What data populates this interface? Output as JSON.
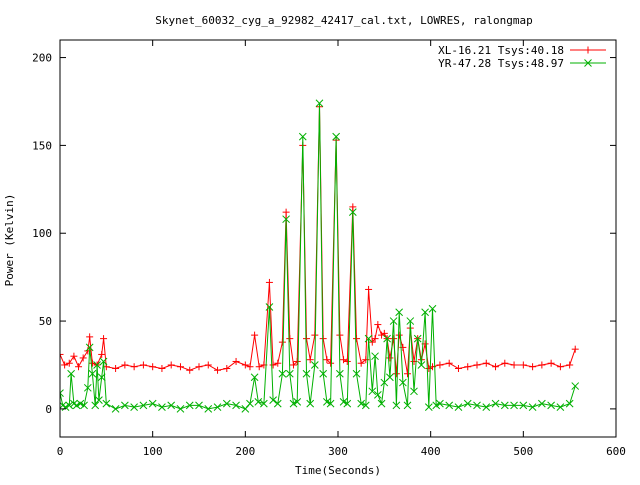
{
  "chart_data": {
    "type": "line",
    "title": "Skynet_60032_cyg_a_92982_42417_cal.txt, LOWRES, ralongmap",
    "xlabel": "Time(Seconds)",
    "ylabel": "Power (Kelvin)",
    "xlim": [
      0,
      600
    ],
    "ylim": [
      -16,
      210
    ],
    "xticks": [
      0,
      100,
      200,
      300,
      400,
      500,
      600
    ],
    "yticks": [
      0,
      50,
      100,
      150,
      200
    ],
    "grid": false,
    "legend_position": "top-right",
    "series": [
      {
        "name": "XL-16.21 Tsys:40.18",
        "color": "#ff0000",
        "marker": "plus",
        "points": [
          [
            0,
            31
          ],
          [
            5,
            25
          ],
          [
            10,
            26
          ],
          [
            15,
            30
          ],
          [
            20,
            24
          ],
          [
            25,
            29
          ],
          [
            30,
            33
          ],
          [
            32,
            41
          ],
          [
            35,
            26
          ],
          [
            40,
            25
          ],
          [
            45,
            31
          ],
          [
            47,
            40
          ],
          [
            50,
            24
          ],
          [
            60,
            23
          ],
          [
            70,
            25
          ],
          [
            80,
            24
          ],
          [
            90,
            25
          ],
          [
            100,
            24
          ],
          [
            110,
            23
          ],
          [
            120,
            25
          ],
          [
            130,
            24
          ],
          [
            140,
            22
          ],
          [
            150,
            24
          ],
          [
            160,
            25
          ],
          [
            170,
            22
          ],
          [
            180,
            23
          ],
          [
            190,
            27
          ],
          [
            200,
            25
          ],
          [
            205,
            24
          ],
          [
            210,
            42
          ],
          [
            215,
            24
          ],
          [
            220,
            25
          ],
          [
            226,
            72
          ],
          [
            230,
            25
          ],
          [
            235,
            26
          ],
          [
            240,
            38
          ],
          [
            244,
            112
          ],
          [
            248,
            40
          ],
          [
            252,
            25
          ],
          [
            256,
            27
          ],
          [
            262,
            150
          ],
          [
            266,
            40
          ],
          [
            270,
            28
          ],
          [
            275,
            42
          ],
          [
            280,
            172
          ],
          [
            284,
            40
          ],
          [
            288,
            28
          ],
          [
            292,
            26
          ],
          [
            298,
            153
          ],
          [
            302,
            42
          ],
          [
            306,
            28
          ],
          [
            310,
            27
          ],
          [
            316,
            115
          ],
          [
            320,
            40
          ],
          [
            325,
            26
          ],
          [
            330,
            28
          ],
          [
            333,
            68
          ],
          [
            337,
            38
          ],
          [
            340,
            40
          ],
          [
            343,
            48
          ],
          [
            347,
            42
          ],
          [
            350,
            43
          ],
          [
            353,
            40
          ],
          [
            356,
            29
          ],
          [
            360,
            40
          ],
          [
            363,
            20
          ],
          [
            366,
            42
          ],
          [
            370,
            35
          ],
          [
            375,
            20
          ],
          [
            378,
            46
          ],
          [
            382,
            27
          ],
          [
            386,
            40
          ],
          [
            390,
            28
          ],
          [
            394,
            37
          ],
          [
            398,
            23
          ],
          [
            402,
            24
          ],
          [
            410,
            25
          ],
          [
            420,
            26
          ],
          [
            430,
            23
          ],
          [
            440,
            24
          ],
          [
            450,
            25
          ],
          [
            460,
            26
          ],
          [
            470,
            24
          ],
          [
            480,
            26
          ],
          [
            490,
            25
          ],
          [
            500,
            25
          ],
          [
            510,
            24
          ],
          [
            520,
            25
          ],
          [
            530,
            26
          ],
          [
            540,
            24
          ],
          [
            550,
            25
          ],
          [
            556,
            34
          ]
        ]
      },
      {
        "name": "YR-47.28 Tsys:48.97",
        "color": "#00b000",
        "marker": "cross",
        "points": [
          [
            0,
            9
          ],
          [
            3,
            2
          ],
          [
            6,
            1
          ],
          [
            10,
            2
          ],
          [
            12,
            20
          ],
          [
            15,
            3
          ],
          [
            18,
            2
          ],
          [
            22,
            3
          ],
          [
            26,
            2
          ],
          [
            30,
            12
          ],
          [
            32,
            35
          ],
          [
            35,
            20
          ],
          [
            38,
            2
          ],
          [
            40,
            25
          ],
          [
            42,
            5
          ],
          [
            45,
            18
          ],
          [
            47,
            27
          ],
          [
            50,
            3
          ],
          [
            60,
            0
          ],
          [
            70,
            2
          ],
          [
            80,
            1
          ],
          [
            90,
            2
          ],
          [
            100,
            3
          ],
          [
            110,
            1
          ],
          [
            120,
            2
          ],
          [
            130,
            0
          ],
          [
            140,
            2
          ],
          [
            150,
            2
          ],
          [
            160,
            0
          ],
          [
            170,
            1
          ],
          [
            180,
            3
          ],
          [
            190,
            2
          ],
          [
            200,
            0
          ],
          [
            205,
            3
          ],
          [
            210,
            18
          ],
          [
            214,
            4
          ],
          [
            220,
            3
          ],
          [
            226,
            58
          ],
          [
            230,
            5
          ],
          [
            235,
            3
          ],
          [
            240,
            20
          ],
          [
            244,
            108
          ],
          [
            248,
            20
          ],
          [
            252,
            3
          ],
          [
            256,
            4
          ],
          [
            262,
            155
          ],
          [
            266,
            20
          ],
          [
            270,
            3
          ],
          [
            275,
            25
          ],
          [
            280,
            174
          ],
          [
            284,
            20
          ],
          [
            288,
            4
          ],
          [
            292,
            3
          ],
          [
            298,
            155
          ],
          [
            302,
            20
          ],
          [
            306,
            4
          ],
          [
            310,
            3
          ],
          [
            316,
            112
          ],
          [
            320,
            20
          ],
          [
            325,
            3
          ],
          [
            330,
            2
          ],
          [
            333,
            40
          ],
          [
            337,
            10
          ],
          [
            340,
            30
          ],
          [
            343,
            8
          ],
          [
            347,
            3
          ],
          [
            350,
            15
          ],
          [
            353,
            40
          ],
          [
            356,
            18
          ],
          [
            360,
            50
          ],
          [
            363,
            2
          ],
          [
            366,
            55
          ],
          [
            370,
            15
          ],
          [
            375,
            2
          ],
          [
            378,
            50
          ],
          [
            382,
            10
          ],
          [
            386,
            40
          ],
          [
            390,
            25
          ],
          [
            394,
            55
          ],
          [
            398,
            1
          ],
          [
            402,
            57
          ],
          [
            406,
            2
          ],
          [
            410,
            3
          ],
          [
            420,
            2
          ],
          [
            430,
            1
          ],
          [
            440,
            3
          ],
          [
            450,
            2
          ],
          [
            460,
            1
          ],
          [
            470,
            3
          ],
          [
            480,
            2
          ],
          [
            490,
            2
          ],
          [
            500,
            2
          ],
          [
            510,
            1
          ],
          [
            520,
            3
          ],
          [
            530,
            2
          ],
          [
            540,
            1
          ],
          [
            550,
            3
          ],
          [
            556,
            13
          ]
        ]
      }
    ]
  }
}
